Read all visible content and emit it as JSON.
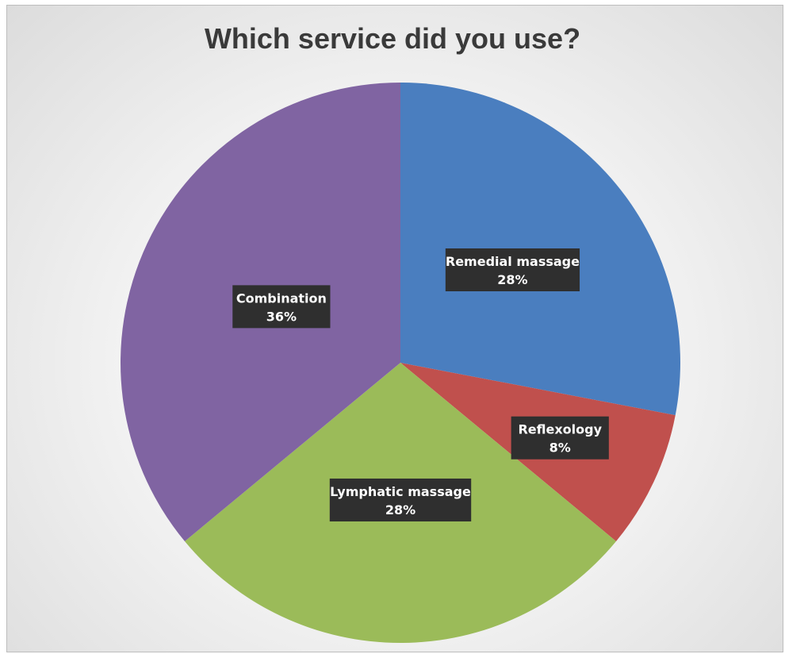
{
  "chart_data": {
    "type": "pie",
    "title": "Which service did you use?",
    "categories": [
      "Remedial massage",
      "Reflexology",
      "Lymphatic massage",
      "Combination"
    ],
    "values": [
      28,
      8,
      28,
      36
    ],
    "value_suffix": "%",
    "colors": [
      "#4a7ebf",
      "#c0504d",
      "#9bbb59",
      "#8064a2"
    ],
    "label_box_color": "#2f2f2f",
    "label_text_color": "#ffffff",
    "start_angle_deg": 0,
    "direction": "clockwise",
    "legend": "none"
  }
}
